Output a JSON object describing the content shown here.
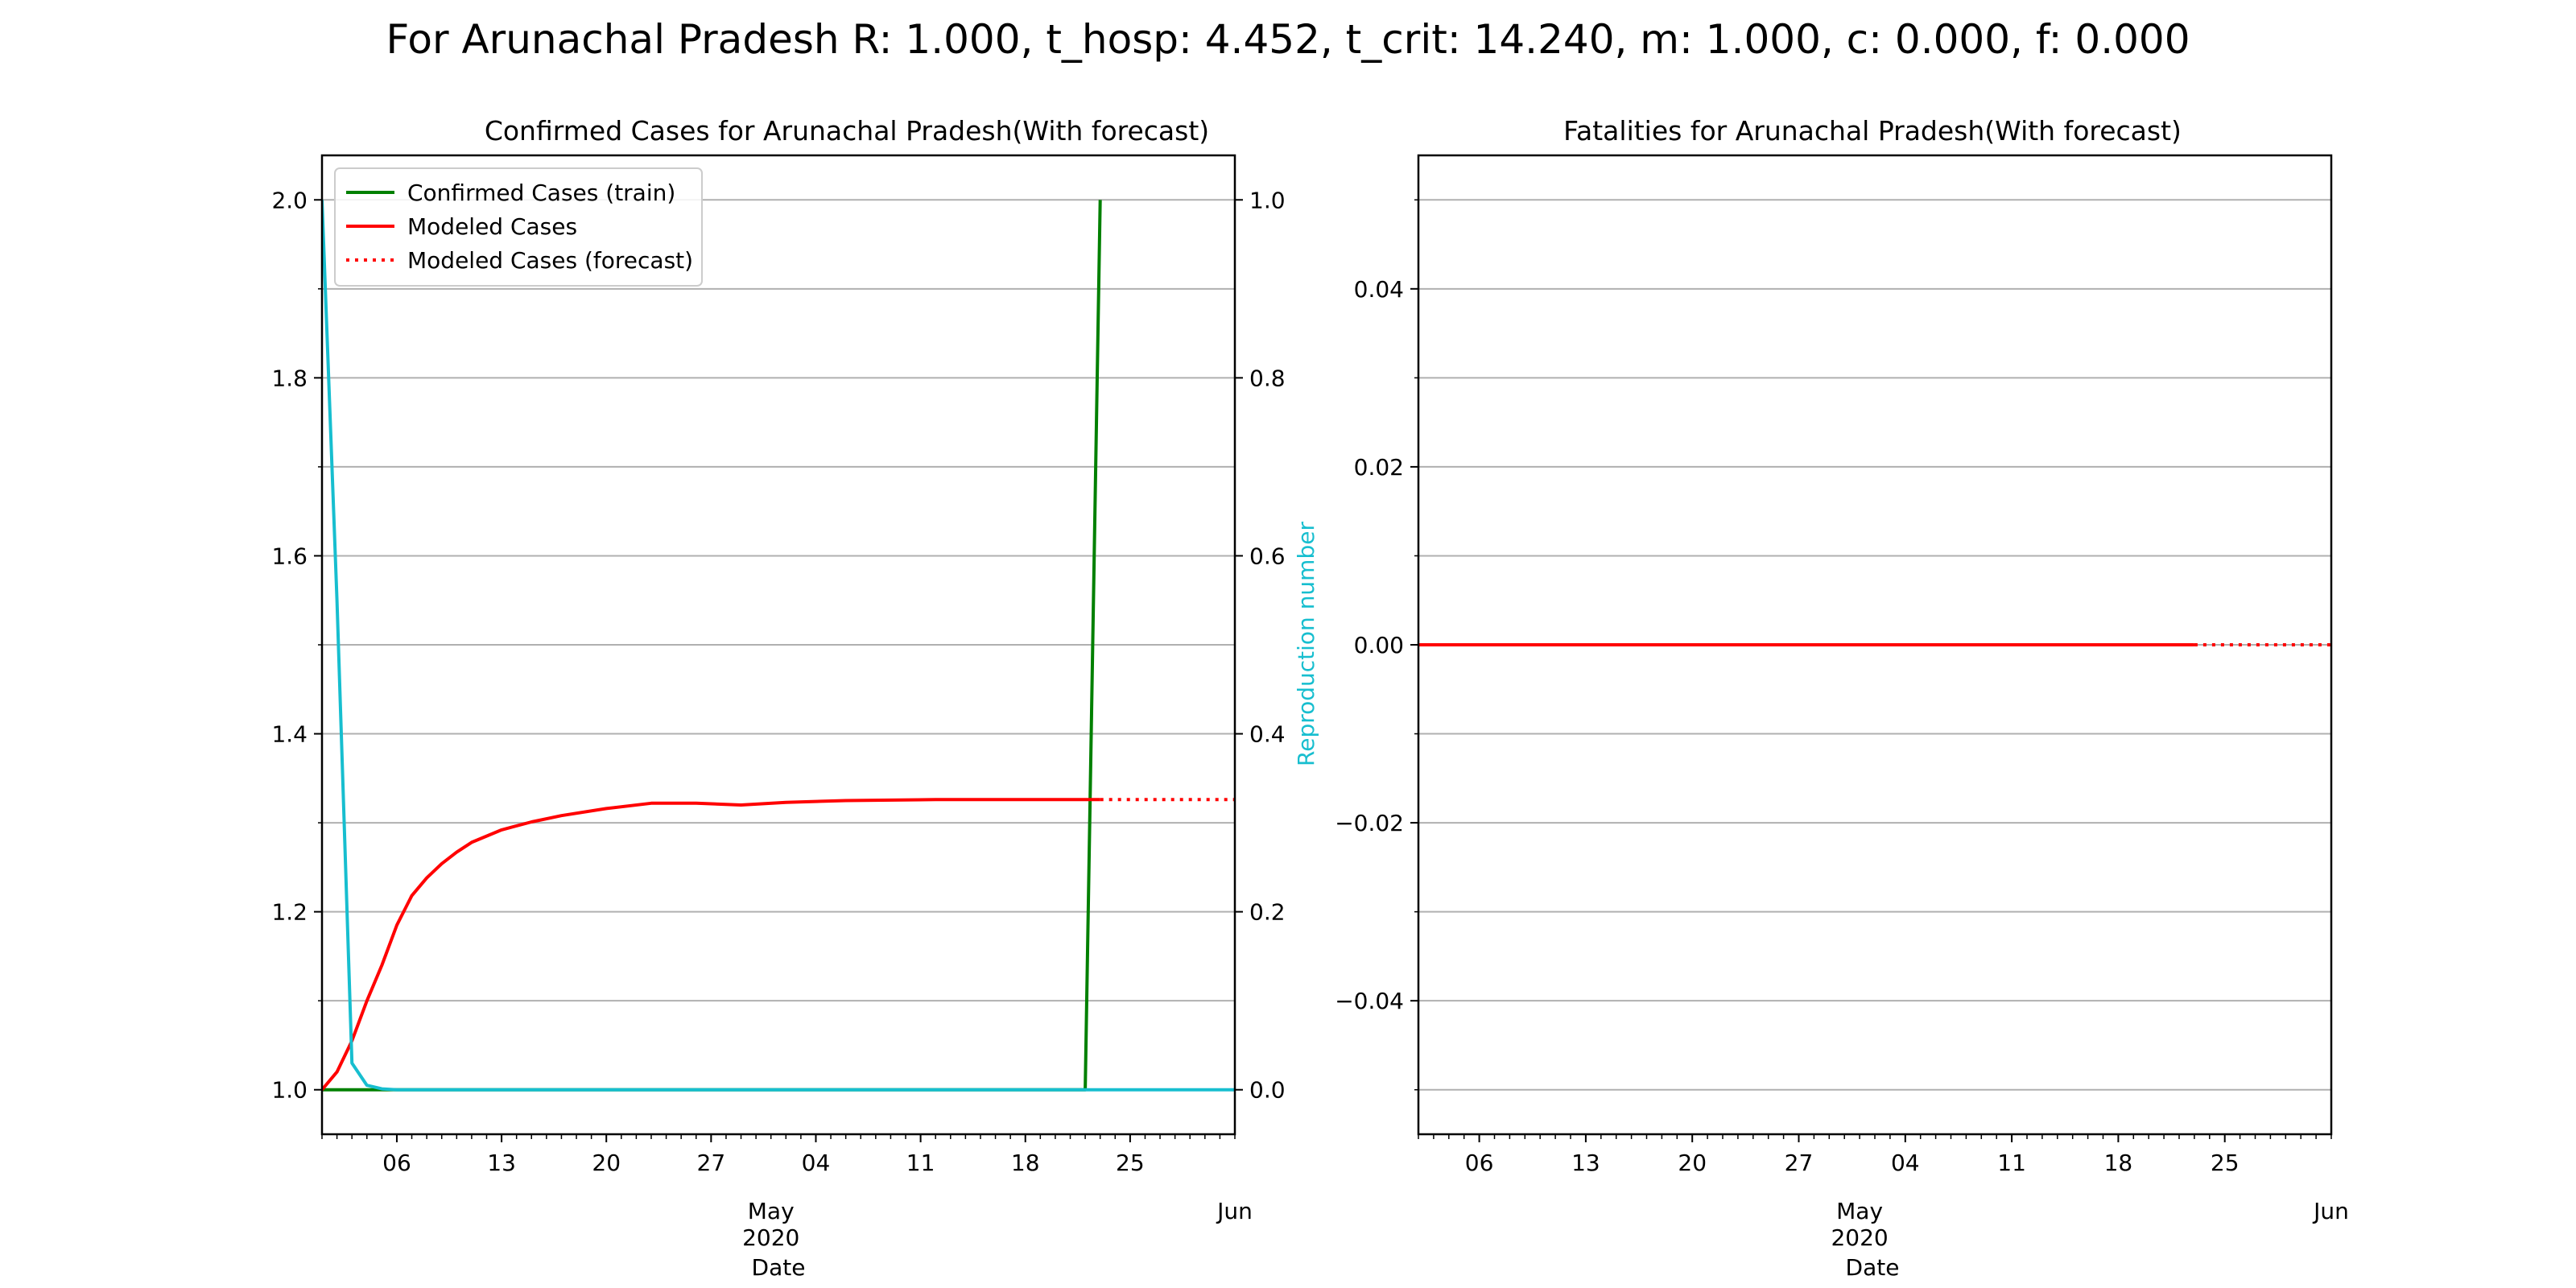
{
  "figure_title": "For Arunachal Pradesh R: 1.000, t_hosp: 4.452, t_crit: 14.240, m: 1.000, c: 0.000, f: 0.000",
  "colors": {
    "confirmed_train": "#008000",
    "modeled": "#ff0000",
    "reproduction": "#17becf",
    "grid": "#b0b0b0",
    "axis": "#000000"
  },
  "chart_data": [
    {
      "type": "line",
      "title": "Confirmed Cases for Arunachal Pradesh(With forecast)",
      "xlabel": "Date",
      "ylabel": "",
      "y2label": "Reproduction number",
      "xlim": [
        "2020-04-01",
        "2020-06-01"
      ],
      "ylim": [
        0.95,
        2.05
      ],
      "y2lim": [
        -0.05,
        1.05
      ],
      "yticks": [
        "1.0",
        "1.2",
        "1.4",
        "1.6",
        "1.8",
        "2.0"
      ],
      "y2ticks": [
        "0.0",
        "0.2",
        "0.4",
        "0.6",
        "0.8",
        "1.0"
      ],
      "xticks": [
        {
          "date": "2020-04-06",
          "label": "06"
        },
        {
          "date": "2020-04-13",
          "label": "13"
        },
        {
          "date": "2020-04-20",
          "label": "20"
        },
        {
          "date": "2020-04-27",
          "label": "27"
        },
        {
          "date": "2020-05-04",
          "label": "04"
        },
        {
          "date": "2020-05-11",
          "label": "11"
        },
        {
          "date": "2020-05-18",
          "label": "18"
        },
        {
          "date": "2020-05-25",
          "label": "25"
        }
      ],
      "month_labels": [
        {
          "date": "2020-05-01",
          "label": "May",
          "sublabel": "2020"
        },
        {
          "date": "2020-06-01",
          "label": "Jun",
          "sublabel": ""
        }
      ],
      "grid": true,
      "legend": {
        "placement": "upper-left",
        "entries": [
          "Confirmed Cases (train)",
          "Modeled Cases",
          "Modeled Cases (forecast)"
        ]
      },
      "series": [
        {
          "name": "Confirmed Cases (train)",
          "axis": "left",
          "style": "solid",
          "color": "#008000",
          "points": [
            [
              "2020-04-01",
              1.0
            ],
            [
              "2020-05-22",
              1.0
            ],
            [
              "2020-05-23",
              2.0
            ]
          ]
        },
        {
          "name": "Modeled Cases",
          "axis": "left",
          "style": "solid",
          "color": "#ff0000",
          "points": [
            [
              "2020-04-01",
              1.0
            ],
            [
              "2020-04-02",
              1.02
            ],
            [
              "2020-04-03",
              1.055
            ],
            [
              "2020-04-04",
              1.1
            ],
            [
              "2020-04-05",
              1.14
            ],
            [
              "2020-04-06",
              1.185
            ],
            [
              "2020-04-07",
              1.218
            ],
            [
              "2020-04-08",
              1.238
            ],
            [
              "2020-04-09",
              1.254
            ],
            [
              "2020-04-10",
              1.267
            ],
            [
              "2020-04-11",
              1.278
            ],
            [
              "2020-04-13",
              1.292
            ],
            [
              "2020-04-15",
              1.301
            ],
            [
              "2020-04-17",
              1.308
            ],
            [
              "2020-04-20",
              1.316
            ],
            [
              "2020-04-23",
              1.322
            ],
            [
              "2020-04-26",
              1.322
            ],
            [
              "2020-04-29",
              1.32
            ],
            [
              "2020-05-02",
              1.323
            ],
            [
              "2020-05-06",
              1.325
            ],
            [
              "2020-05-12",
              1.326
            ],
            [
              "2020-05-18",
              1.326
            ],
            [
              "2020-05-23",
              1.326
            ]
          ]
        },
        {
          "name": "Modeled Cases (forecast)",
          "axis": "left",
          "style": "dotted",
          "color": "#ff0000",
          "points": [
            [
              "2020-05-23",
              1.326
            ],
            [
              "2020-06-01",
              1.326
            ]
          ]
        },
        {
          "name": "",
          "axis": "right",
          "style": "solid",
          "color": "#17becf",
          "points": [
            [
              "2020-04-01",
              1.0
            ],
            [
              "2020-04-02",
              0.55
            ],
            [
              "2020-04-03",
              0.03
            ],
            [
              "2020-04-04",
              0.005
            ],
            [
              "2020-04-05",
              0.001
            ],
            [
              "2020-04-06",
              0.0
            ],
            [
              "2020-06-01",
              0.0
            ]
          ]
        }
      ]
    },
    {
      "type": "line",
      "title": "Fatalities for Arunachal Pradesh(With forecast)",
      "xlabel": "Date",
      "ylabel": "",
      "xlim": [
        "2020-04-02",
        "2020-06-01"
      ],
      "ylim": [
        -0.055,
        0.055
      ],
      "yticks": [
        "−0.04",
        "−0.02",
        "0.00",
        "0.02",
        "0.04"
      ],
      "xticks": [
        {
          "date": "2020-04-06",
          "label": "06"
        },
        {
          "date": "2020-04-13",
          "label": "13"
        },
        {
          "date": "2020-04-20",
          "label": "20"
        },
        {
          "date": "2020-04-27",
          "label": "27"
        },
        {
          "date": "2020-05-04",
          "label": "04"
        },
        {
          "date": "2020-05-11",
          "label": "11"
        },
        {
          "date": "2020-05-18",
          "label": "18"
        },
        {
          "date": "2020-05-25",
          "label": "25"
        }
      ],
      "month_labels": [
        {
          "date": "2020-05-01",
          "label": "May",
          "sublabel": "2020"
        },
        {
          "date": "2020-06-01",
          "label": "Jun",
          "sublabel": ""
        }
      ],
      "grid": true,
      "series": [
        {
          "name": "",
          "axis": "left",
          "style": "solid",
          "color": "#ff0000",
          "points": [
            [
              "2020-04-02",
              0.0
            ],
            [
              "2020-05-23",
              0.0
            ]
          ]
        },
        {
          "name": "",
          "axis": "left",
          "style": "dotted",
          "color": "#ff0000",
          "points": [
            [
              "2020-05-23",
              0.0
            ],
            [
              "2020-06-01",
              0.0
            ]
          ]
        }
      ]
    }
  ]
}
